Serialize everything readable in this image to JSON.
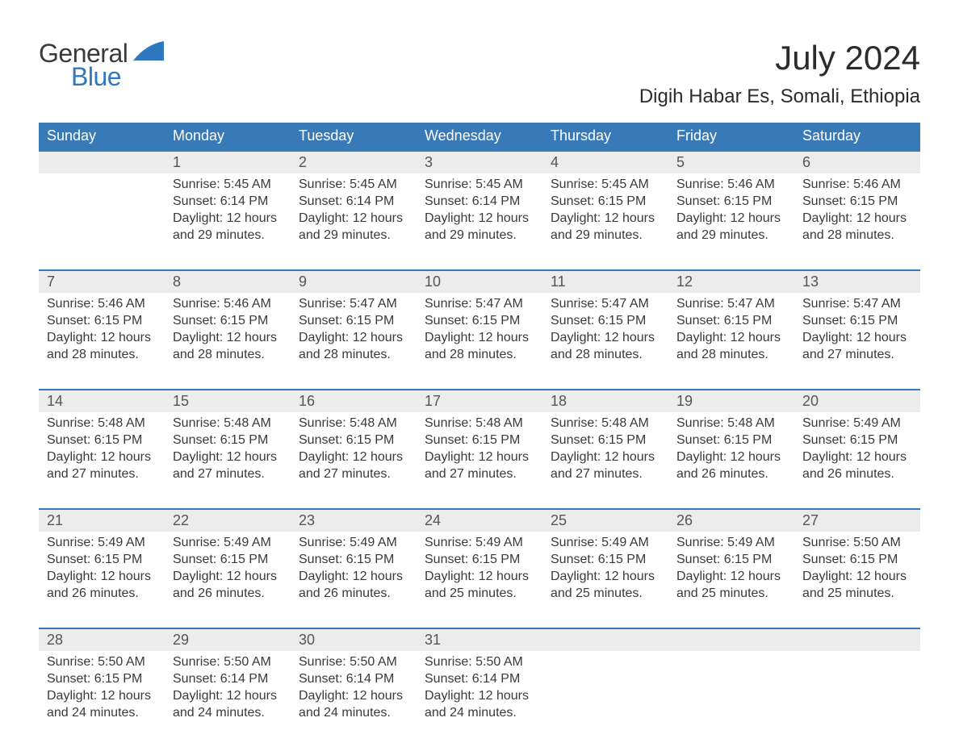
{
  "logo": {
    "text1": "General",
    "text2": "Blue",
    "accent_color": "#2f78bf",
    "text2_color": "#2f78bf"
  },
  "title": "July 2024",
  "location": "Digih Habar Es, Somali, Ethiopia",
  "colors": {
    "header_bg": "#3879b8",
    "header_text": "#ffffff",
    "row_divider": "#3879b8",
    "daynum_bg": "#ececec",
    "body_text": "#3a3a3a",
    "background": "#ffffff"
  },
  "typography": {
    "title_fontsize": 42,
    "location_fontsize": 24,
    "dayhead_fontsize": 18,
    "daynum_fontsize": 18,
    "body_fontsize": 16
  },
  "day_headers": [
    "Sunday",
    "Monday",
    "Tuesday",
    "Wednesday",
    "Thursday",
    "Friday",
    "Saturday"
  ],
  "weeks": [
    [
      {
        "num": "",
        "sunrise": "",
        "sunset": "",
        "daylight": ""
      },
      {
        "num": "1",
        "sunrise": "Sunrise: 5:45 AM",
        "sunset": "Sunset: 6:14 PM",
        "daylight": "Daylight: 12 hours and 29 minutes."
      },
      {
        "num": "2",
        "sunrise": "Sunrise: 5:45 AM",
        "sunset": "Sunset: 6:14 PM",
        "daylight": "Daylight: 12 hours and 29 minutes."
      },
      {
        "num": "3",
        "sunrise": "Sunrise: 5:45 AM",
        "sunset": "Sunset: 6:14 PM",
        "daylight": "Daylight: 12 hours and 29 minutes."
      },
      {
        "num": "4",
        "sunrise": "Sunrise: 5:45 AM",
        "sunset": "Sunset: 6:15 PM",
        "daylight": "Daylight: 12 hours and 29 minutes."
      },
      {
        "num": "5",
        "sunrise": "Sunrise: 5:46 AM",
        "sunset": "Sunset: 6:15 PM",
        "daylight": "Daylight: 12 hours and 29 minutes."
      },
      {
        "num": "6",
        "sunrise": "Sunrise: 5:46 AM",
        "sunset": "Sunset: 6:15 PM",
        "daylight": "Daylight: 12 hours and 28 minutes."
      }
    ],
    [
      {
        "num": "7",
        "sunrise": "Sunrise: 5:46 AM",
        "sunset": "Sunset: 6:15 PM",
        "daylight": "Daylight: 12 hours and 28 minutes."
      },
      {
        "num": "8",
        "sunrise": "Sunrise: 5:46 AM",
        "sunset": "Sunset: 6:15 PM",
        "daylight": "Daylight: 12 hours and 28 minutes."
      },
      {
        "num": "9",
        "sunrise": "Sunrise: 5:47 AM",
        "sunset": "Sunset: 6:15 PM",
        "daylight": "Daylight: 12 hours and 28 minutes."
      },
      {
        "num": "10",
        "sunrise": "Sunrise: 5:47 AM",
        "sunset": "Sunset: 6:15 PM",
        "daylight": "Daylight: 12 hours and 28 minutes."
      },
      {
        "num": "11",
        "sunrise": "Sunrise: 5:47 AM",
        "sunset": "Sunset: 6:15 PM",
        "daylight": "Daylight: 12 hours and 28 minutes."
      },
      {
        "num": "12",
        "sunrise": "Sunrise: 5:47 AM",
        "sunset": "Sunset: 6:15 PM",
        "daylight": "Daylight: 12 hours and 28 minutes."
      },
      {
        "num": "13",
        "sunrise": "Sunrise: 5:47 AM",
        "sunset": "Sunset: 6:15 PM",
        "daylight": "Daylight: 12 hours and 27 minutes."
      }
    ],
    [
      {
        "num": "14",
        "sunrise": "Sunrise: 5:48 AM",
        "sunset": "Sunset: 6:15 PM",
        "daylight": "Daylight: 12 hours and 27 minutes."
      },
      {
        "num": "15",
        "sunrise": "Sunrise: 5:48 AM",
        "sunset": "Sunset: 6:15 PM",
        "daylight": "Daylight: 12 hours and 27 minutes."
      },
      {
        "num": "16",
        "sunrise": "Sunrise: 5:48 AM",
        "sunset": "Sunset: 6:15 PM",
        "daylight": "Daylight: 12 hours and 27 minutes."
      },
      {
        "num": "17",
        "sunrise": "Sunrise: 5:48 AM",
        "sunset": "Sunset: 6:15 PM",
        "daylight": "Daylight: 12 hours and 27 minutes."
      },
      {
        "num": "18",
        "sunrise": "Sunrise: 5:48 AM",
        "sunset": "Sunset: 6:15 PM",
        "daylight": "Daylight: 12 hours and 27 minutes."
      },
      {
        "num": "19",
        "sunrise": "Sunrise: 5:48 AM",
        "sunset": "Sunset: 6:15 PM",
        "daylight": "Daylight: 12 hours and 26 minutes."
      },
      {
        "num": "20",
        "sunrise": "Sunrise: 5:49 AM",
        "sunset": "Sunset: 6:15 PM",
        "daylight": "Daylight: 12 hours and 26 minutes."
      }
    ],
    [
      {
        "num": "21",
        "sunrise": "Sunrise: 5:49 AM",
        "sunset": "Sunset: 6:15 PM",
        "daylight": "Daylight: 12 hours and 26 minutes."
      },
      {
        "num": "22",
        "sunrise": "Sunrise: 5:49 AM",
        "sunset": "Sunset: 6:15 PM",
        "daylight": "Daylight: 12 hours and 26 minutes."
      },
      {
        "num": "23",
        "sunrise": "Sunrise: 5:49 AM",
        "sunset": "Sunset: 6:15 PM",
        "daylight": "Daylight: 12 hours and 26 minutes."
      },
      {
        "num": "24",
        "sunrise": "Sunrise: 5:49 AM",
        "sunset": "Sunset: 6:15 PM",
        "daylight": "Daylight: 12 hours and 25 minutes."
      },
      {
        "num": "25",
        "sunrise": "Sunrise: 5:49 AM",
        "sunset": "Sunset: 6:15 PM",
        "daylight": "Daylight: 12 hours and 25 minutes."
      },
      {
        "num": "26",
        "sunrise": "Sunrise: 5:49 AM",
        "sunset": "Sunset: 6:15 PM",
        "daylight": "Daylight: 12 hours and 25 minutes."
      },
      {
        "num": "27",
        "sunrise": "Sunrise: 5:50 AM",
        "sunset": "Sunset: 6:15 PM",
        "daylight": "Daylight: 12 hours and 25 minutes."
      }
    ],
    [
      {
        "num": "28",
        "sunrise": "Sunrise: 5:50 AM",
        "sunset": "Sunset: 6:15 PM",
        "daylight": "Daylight: 12 hours and 24 minutes."
      },
      {
        "num": "29",
        "sunrise": "Sunrise: 5:50 AM",
        "sunset": "Sunset: 6:14 PM",
        "daylight": "Daylight: 12 hours and 24 minutes."
      },
      {
        "num": "30",
        "sunrise": "Sunrise: 5:50 AM",
        "sunset": "Sunset: 6:14 PM",
        "daylight": "Daylight: 12 hours and 24 minutes."
      },
      {
        "num": "31",
        "sunrise": "Sunrise: 5:50 AM",
        "sunset": "Sunset: 6:14 PM",
        "daylight": "Daylight: 12 hours and 24 minutes."
      },
      {
        "num": "",
        "sunrise": "",
        "sunset": "",
        "daylight": ""
      },
      {
        "num": "",
        "sunrise": "",
        "sunset": "",
        "daylight": ""
      },
      {
        "num": "",
        "sunrise": "",
        "sunset": "",
        "daylight": ""
      }
    ]
  ]
}
